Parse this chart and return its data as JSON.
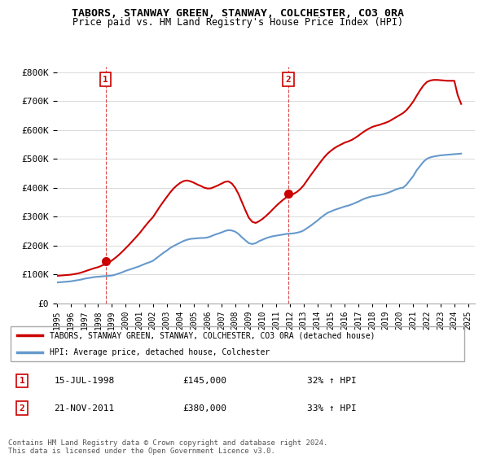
{
  "title": "TABORS, STANWAY GREEN, STANWAY, COLCHESTER, CO3 0RA",
  "subtitle": "Price paid vs. HM Land Registry's House Price Index (HPI)",
  "legend_line1": "TABORS, STANWAY GREEN, STANWAY, COLCHESTER, CO3 0RA (detached house)",
  "legend_line2": "HPI: Average price, detached house, Colchester",
  "annotation1_date": "15-JUL-1998",
  "annotation1_price": "£145,000",
  "annotation1_hpi": "32% ↑ HPI",
  "annotation2_date": "21-NOV-2011",
  "annotation2_price": "£380,000",
  "annotation2_hpi": "33% ↑ HPI",
  "footnote": "Contains HM Land Registry data © Crown copyright and database right 2024.\nThis data is licensed under the Open Government Licence v3.0.",
  "property_color": "#cc0000",
  "hpi_color": "#6699cc",
  "ylim": [
    0,
    820000
  ],
  "yticks": [
    0,
    100000,
    200000,
    300000,
    400000,
    500000,
    600000,
    700000,
    800000
  ],
  "xlim_start": 1995.0,
  "xlim_end": 2025.5,
  "sale1_x": 1998.54,
  "sale1_y": 145000,
  "sale2_x": 2011.89,
  "sale2_y": 380000,
  "hpi_x": [
    1995,
    1995.25,
    1995.5,
    1995.75,
    1996,
    1996.25,
    1996.5,
    1996.75,
    1997,
    1997.25,
    1997.5,
    1997.75,
    1998,
    1998.25,
    1998.5,
    1998.75,
    1999,
    1999.25,
    1999.5,
    1999.75,
    2000,
    2000.25,
    2000.5,
    2000.75,
    2001,
    2001.25,
    2001.5,
    2001.75,
    2002,
    2002.25,
    2002.5,
    2002.75,
    2003,
    2003.25,
    2003.5,
    2003.75,
    2004,
    2004.25,
    2004.5,
    2004.75,
    2005,
    2005.25,
    2005.5,
    2005.75,
    2006,
    2006.25,
    2006.5,
    2006.75,
    2007,
    2007.25,
    2007.5,
    2007.75,
    2008,
    2008.25,
    2008.5,
    2008.75,
    2009,
    2009.25,
    2009.5,
    2009.75,
    2010,
    2010.25,
    2010.5,
    2010.75,
    2011,
    2011.25,
    2011.5,
    2011.75,
    2012,
    2012.25,
    2012.5,
    2012.75,
    2013,
    2013.25,
    2013.5,
    2013.75,
    2014,
    2014.25,
    2014.5,
    2014.75,
    2015,
    2015.25,
    2015.5,
    2015.75,
    2016,
    2016.25,
    2016.5,
    2016.75,
    2017,
    2017.25,
    2017.5,
    2017.75,
    2018,
    2018.25,
    2018.5,
    2018.75,
    2019,
    2019.25,
    2019.5,
    2019.75,
    2020,
    2020.25,
    2020.5,
    2020.75,
    2021,
    2021.25,
    2021.5,
    2021.75,
    2022,
    2022.25,
    2022.5,
    2022.75,
    2023,
    2023.25,
    2023.5,
    2023.75,
    2024,
    2024.25,
    2024.5
  ],
  "hpi_y": [
    72000,
    73000,
    74000,
    75000,
    76000,
    78000,
    80000,
    82000,
    85000,
    87000,
    89000,
    91000,
    92000,
    93000,
    94000,
    95000,
    96000,
    99000,
    103000,
    107000,
    112000,
    116000,
    120000,
    124000,
    128000,
    133000,
    138000,
    142000,
    147000,
    156000,
    165000,
    174000,
    182000,
    191000,
    198000,
    204000,
    210000,
    216000,
    220000,
    223000,
    224000,
    225000,
    226000,
    226000,
    228000,
    232000,
    237000,
    241000,
    245000,
    250000,
    253000,
    252000,
    248000,
    240000,
    228000,
    218000,
    208000,
    205000,
    208000,
    215000,
    220000,
    225000,
    229000,
    232000,
    234000,
    236000,
    238000,
    240000,
    241000,
    242000,
    244000,
    247000,
    252000,
    260000,
    268000,
    277000,
    286000,
    296000,
    305000,
    313000,
    318000,
    323000,
    327000,
    331000,
    335000,
    338000,
    342000,
    347000,
    352000,
    358000,
    363000,
    367000,
    370000,
    372000,
    374000,
    377000,
    380000,
    384000,
    389000,
    394000,
    398000,
    400000,
    410000,
    425000,
    440000,
    460000,
    475000,
    490000,
    500000,
    505000,
    508000,
    510000,
    512000,
    513000,
    514000,
    515000,
    516000,
    517000,
    518000
  ],
  "prop_x": [
    1995,
    1995.25,
    1995.5,
    1995.75,
    1996,
    1996.25,
    1996.5,
    1996.75,
    1997,
    1997.25,
    1997.5,
    1997.75,
    1998,
    1998.25,
    1998.5,
    1998.75,
    1999,
    1999.25,
    1999.5,
    1999.75,
    2000,
    2000.25,
    2000.5,
    2000.75,
    2001,
    2001.25,
    2001.5,
    2001.75,
    2002,
    2002.25,
    2002.5,
    2002.75,
    2003,
    2003.25,
    2003.5,
    2003.75,
    2004,
    2004.25,
    2004.5,
    2004.75,
    2005,
    2005.25,
    2005.5,
    2005.75,
    2006,
    2006.25,
    2006.5,
    2006.75,
    2007,
    2007.25,
    2007.5,
    2007.75,
    2008,
    2008.25,
    2008.5,
    2008.75,
    2009,
    2009.25,
    2009.5,
    2009.75,
    2010,
    2010.25,
    2010.5,
    2010.75,
    2011,
    2011.25,
    2011.5,
    2011.75,
    2012,
    2012.25,
    2012.5,
    2012.75,
    2013,
    2013.25,
    2013.5,
    2013.75,
    2014,
    2014.25,
    2014.5,
    2014.75,
    2015,
    2015.25,
    2015.5,
    2015.75,
    2016,
    2016.25,
    2016.5,
    2016.75,
    2017,
    2017.25,
    2017.5,
    2017.75,
    2018,
    2018.25,
    2018.5,
    2018.75,
    2019,
    2019.25,
    2019.5,
    2019.75,
    2020,
    2020.25,
    2020.5,
    2020.75,
    2021,
    2021.25,
    2021.5,
    2021.75,
    2022,
    2022.25,
    2022.5,
    2022.75,
    2023,
    2023.25,
    2023.5,
    2023.75,
    2024,
    2024.25,
    2024.5
  ],
  "prop_y": [
    95000,
    96000,
    97000,
    98000,
    99000,
    101000,
    103000,
    106000,
    110000,
    114000,
    118000,
    122000,
    125000,
    130000,
    135000,
    140000,
    148000,
    157000,
    167000,
    178000,
    190000,
    202000,
    215000,
    228000,
    241000,
    256000,
    271000,
    285000,
    298000,
    316000,
    334000,
    351000,
    367000,
    383000,
    397000,
    408000,
    417000,
    423000,
    425000,
    422000,
    417000,
    411000,
    406000,
    400000,
    397000,
    398000,
    403000,
    408000,
    414000,
    420000,
    422000,
    415000,
    400000,
    378000,
    350000,
    322000,
    296000,
    282000,
    278000,
    284000,
    292000,
    302000,
    313000,
    325000,
    337000,
    348000,
    358000,
    367000,
    373000,
    378000,
    385000,
    395000,
    408000,
    425000,
    442000,
    458000,
    474000,
    490000,
    505000,
    518000,
    528000,
    537000,
    544000,
    550000,
    556000,
    560000,
    565000,
    572000,
    580000,
    589000,
    597000,
    604000,
    610000,
    614000,
    617000,
    621000,
    625000,
    630000,
    637000,
    644000,
    651000,
    658000,
    668000,
    682000,
    698000,
    718000,
    737000,
    754000,
    766000,
    771000,
    773000,
    773000,
    772000,
    771000,
    770000,
    770000,
    770000,
    720000,
    690000
  ]
}
